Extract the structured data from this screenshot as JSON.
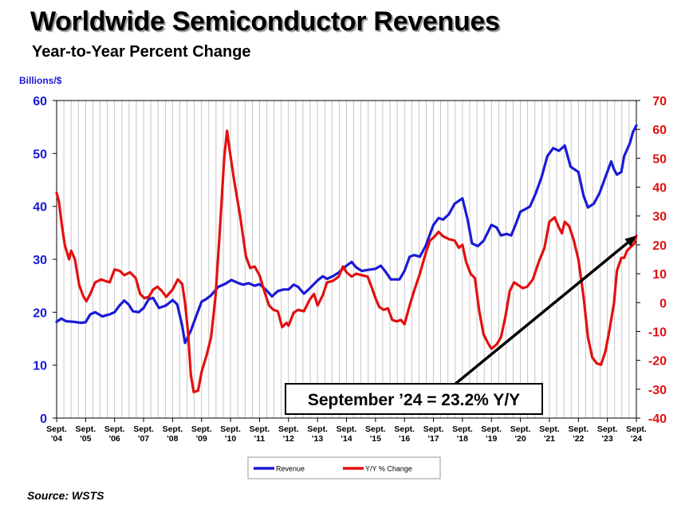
{
  "title": "Worldwide Semiconductor Revenues",
  "subtitle": "Year-to-Year Percent Change",
  "source": "Source: WSTS",
  "colors": {
    "revenue": "#1a1ad6",
    "yoy": "#e31010",
    "grid": "#b8b8b8",
    "left_axis": "#1a1ad6",
    "right_axis": "#e31010"
  },
  "chart_data": {
    "type": "line",
    "ylabel_left": "Billions/$",
    "ylim_left": [
      0,
      60
    ],
    "yticks_left": [
      "0",
      "10",
      "20",
      "30",
      "40",
      "50",
      "60"
    ],
    "ylim_right": [
      -40,
      70
    ],
    "yticks_right": [
      "-40",
      "-30",
      "-20",
      "-10",
      "0",
      "10",
      "20",
      "30",
      "40",
      "50",
      "60",
      "70"
    ],
    "x_range": [
      2004.67,
      2024.67
    ],
    "x_ticks": [
      {
        "top": "Sept.",
        "bottom": "'04"
      },
      {
        "top": "Sept.",
        "bottom": "'05"
      },
      {
        "top": "Sept.",
        "bottom": "'06"
      },
      {
        "top": "Sept.",
        "bottom": "'07"
      },
      {
        "top": "Sept.",
        "bottom": "'08"
      },
      {
        "top": "Sept.",
        "bottom": "'09"
      },
      {
        "top": "Sept.",
        "bottom": "'10"
      },
      {
        "top": "Sept.",
        "bottom": "'11"
      },
      {
        "top": "Sept.",
        "bottom": "'12"
      },
      {
        "top": "Sept.",
        "bottom": "'13"
      },
      {
        "top": "Sept.",
        "bottom": "'14"
      },
      {
        "top": "Sept.",
        "bottom": "'15"
      },
      {
        "top": "Sept.",
        "bottom": "'16"
      },
      {
        "top": "Sept.",
        "bottom": "'17"
      },
      {
        "top": "Sept.",
        "bottom": "'18"
      },
      {
        "top": "Sept.",
        "bottom": "'19"
      },
      {
        "top": "Sept.",
        "bottom": "'20"
      },
      {
        "top": "Sept.",
        "bottom": "'21"
      },
      {
        "top": "Sept.",
        "bottom": "'22"
      },
      {
        "top": "Sept.",
        "bottom": "'23"
      },
      {
        "top": "Sept.",
        "bottom": "'24"
      }
    ],
    "legend": [
      {
        "name": "Revenue",
        "color": "#1a1ad6"
      },
      {
        "name": "Y/Y % Change",
        "color": "#e31010"
      }
    ],
    "annotation": {
      "text": "September ’24 = 23.2% Y/Y",
      "arrow_from": [
        2018.2,
        -30
      ],
      "arrow_to": [
        2024.67,
        23.2
      ]
    },
    "series": [
      {
        "name": "Revenue",
        "axis": "left",
        "points": [
          [
            2004.67,
            18.2
          ],
          [
            2004.83,
            18.8
          ],
          [
            2005.0,
            18.3
          ],
          [
            2005.25,
            18.2
          ],
          [
            2005.5,
            18.0
          ],
          [
            2005.67,
            18.1
          ],
          [
            2005.83,
            19.6
          ],
          [
            2006.0,
            20.0
          ],
          [
            2006.25,
            19.2
          ],
          [
            2006.5,
            19.6
          ],
          [
            2006.67,
            20.0
          ],
          [
            2006.83,
            21.2
          ],
          [
            2007.0,
            22.2
          ],
          [
            2007.15,
            21.5
          ],
          [
            2007.3,
            20.2
          ],
          [
            2007.5,
            20.0
          ],
          [
            2007.67,
            20.8
          ],
          [
            2007.85,
            22.5
          ],
          [
            2008.0,
            22.7
          ],
          [
            2008.2,
            20.8
          ],
          [
            2008.45,
            21.3
          ],
          [
            2008.67,
            22.3
          ],
          [
            2008.83,
            21.5
          ],
          [
            2009.0,
            17.5
          ],
          [
            2009.1,
            14.2
          ],
          [
            2009.3,
            16.5
          ],
          [
            2009.5,
            19.5
          ],
          [
            2009.67,
            22.0
          ],
          [
            2009.83,
            22.5
          ],
          [
            2010.0,
            23.2
          ],
          [
            2010.25,
            24.8
          ],
          [
            2010.5,
            25.4
          ],
          [
            2010.7,
            26.1
          ],
          [
            2010.9,
            25.6
          ],
          [
            2011.1,
            25.2
          ],
          [
            2011.3,
            25.5
          ],
          [
            2011.5,
            25.0
          ],
          [
            2011.67,
            25.3
          ],
          [
            2011.9,
            24.2
          ],
          [
            2012.1,
            23.0
          ],
          [
            2012.3,
            24.0
          ],
          [
            2012.5,
            24.3
          ],
          [
            2012.67,
            24.3
          ],
          [
            2012.85,
            25.2
          ],
          [
            2013.0,
            24.8
          ],
          [
            2013.2,
            23.5
          ],
          [
            2013.4,
            24.5
          ],
          [
            2013.67,
            26.0
          ],
          [
            2013.85,
            26.8
          ],
          [
            2014.0,
            26.3
          ],
          [
            2014.2,
            26.8
          ],
          [
            2014.4,
            27.5
          ],
          [
            2014.67,
            28.8
          ],
          [
            2014.85,
            29.5
          ],
          [
            2015.0,
            28.5
          ],
          [
            2015.2,
            27.8
          ],
          [
            2015.4,
            28.0
          ],
          [
            2015.67,
            28.2
          ],
          [
            2015.85,
            28.8
          ],
          [
            2016.0,
            27.8
          ],
          [
            2016.2,
            26.2
          ],
          [
            2016.5,
            26.2
          ],
          [
            2016.67,
            27.8
          ],
          [
            2016.85,
            30.5
          ],
          [
            2017.0,
            30.8
          ],
          [
            2017.2,
            30.5
          ],
          [
            2017.4,
            32.5
          ],
          [
            2017.67,
            36.5
          ],
          [
            2017.85,
            37.8
          ],
          [
            2018.0,
            37.5
          ],
          [
            2018.2,
            38.5
          ],
          [
            2018.4,
            40.5
          ],
          [
            2018.67,
            41.5
          ],
          [
            2018.85,
            37.5
          ],
          [
            2019.0,
            33.0
          ],
          [
            2019.2,
            32.5
          ],
          [
            2019.4,
            33.5
          ],
          [
            2019.67,
            36.5
          ],
          [
            2019.85,
            36.0
          ],
          [
            2020.0,
            34.5
          ],
          [
            2020.2,
            34.8
          ],
          [
            2020.35,
            34.5
          ],
          [
            2020.5,
            36.5
          ],
          [
            2020.67,
            39.0
          ],
          [
            2020.85,
            39.5
          ],
          [
            2021.0,
            40.0
          ],
          [
            2021.2,
            42.5
          ],
          [
            2021.4,
            45.5
          ],
          [
            2021.6,
            49.5
          ],
          [
            2021.8,
            51.0
          ],
          [
            2022.0,
            50.5
          ],
          [
            2022.2,
            51.5
          ],
          [
            2022.4,
            47.5
          ],
          [
            2022.67,
            46.5
          ],
          [
            2022.85,
            42.0
          ],
          [
            2023.0,
            39.8
          ],
          [
            2023.2,
            40.5
          ],
          [
            2023.4,
            42.5
          ],
          [
            2023.6,
            45.5
          ],
          [
            2023.8,
            48.5
          ],
          [
            2023.9,
            47.0
          ],
          [
            2024.0,
            46.0
          ],
          [
            2024.15,
            46.5
          ],
          [
            2024.25,
            49.5
          ],
          [
            2024.45,
            52.0
          ],
          [
            2024.55,
            54.0
          ],
          [
            2024.67,
            55.3
          ]
        ]
      },
      {
        "name": "Y/Y % Change",
        "axis": "right",
        "points": [
          [
            2004.67,
            38.0
          ],
          [
            2004.75,
            35.0
          ],
          [
            2004.85,
            27.0
          ],
          [
            2004.95,
            20.0
          ],
          [
            2005.1,
            15.0
          ],
          [
            2005.17,
            18.0
          ],
          [
            2005.3,
            15.0
          ],
          [
            2005.45,
            6.0
          ],
          [
            2005.6,
            2.0
          ],
          [
            2005.7,
            0.5
          ],
          [
            2005.83,
            3.0
          ],
          [
            2006.0,
            7.0
          ],
          [
            2006.2,
            8.0
          ],
          [
            2006.35,
            7.5
          ],
          [
            2006.5,
            7.0
          ],
          [
            2006.67,
            11.5
          ],
          [
            2006.85,
            11.0
          ],
          [
            2007.0,
            9.5
          ],
          [
            2007.2,
            10.5
          ],
          [
            2007.4,
            8.5
          ],
          [
            2007.55,
            3.0
          ],
          [
            2007.7,
            1.5
          ],
          [
            2007.85,
            2.0
          ],
          [
            2008.0,
            4.5
          ],
          [
            2008.15,
            5.5
          ],
          [
            2008.3,
            4.0
          ],
          [
            2008.45,
            2.0
          ],
          [
            2008.67,
            4.5
          ],
          [
            2008.85,
            8.0
          ],
          [
            2009.0,
            6.5
          ],
          [
            2009.1,
            0.0
          ],
          [
            2009.2,
            -10.0
          ],
          [
            2009.3,
            -25.0
          ],
          [
            2009.4,
            -31.0
          ],
          [
            2009.55,
            -30.5
          ],
          [
            2009.67,
            -24.0
          ],
          [
            2009.85,
            -18.0
          ],
          [
            2010.0,
            -12.0
          ],
          [
            2010.15,
            2.0
          ],
          [
            2010.3,
            25.0
          ],
          [
            2010.45,
            50.0
          ],
          [
            2010.55,
            59.5
          ],
          [
            2010.65,
            52.0
          ],
          [
            2010.8,
            42.0
          ],
          [
            2011.0,
            30.0
          ],
          [
            2011.2,
            16.0
          ],
          [
            2011.35,
            12.0
          ],
          [
            2011.5,
            12.5
          ],
          [
            2011.67,
            9.5
          ],
          [
            2011.85,
            3.5
          ],
          [
            2012.0,
            -1.0
          ],
          [
            2012.15,
            -2.5
          ],
          [
            2012.3,
            -3.0
          ],
          [
            2012.45,
            -8.5
          ],
          [
            2012.6,
            -7.0
          ],
          [
            2012.67,
            -8.0
          ],
          [
            2012.85,
            -3.5
          ],
          [
            2013.0,
            -2.5
          ],
          [
            2013.2,
            -3.0
          ],
          [
            2013.4,
            1.0
          ],
          [
            2013.55,
            3.0
          ],
          [
            2013.67,
            -1.0
          ],
          [
            2013.85,
            2.5
          ],
          [
            2014.0,
            7.0
          ],
          [
            2014.2,
            7.5
          ],
          [
            2014.4,
            9.0
          ],
          [
            2014.55,
            12.5
          ],
          [
            2014.67,
            10.5
          ],
          [
            2014.85,
            9.0
          ],
          [
            2015.0,
            10.0
          ],
          [
            2015.2,
            9.5
          ],
          [
            2015.4,
            9.0
          ],
          [
            2015.55,
            5.0
          ],
          [
            2015.67,
            1.5
          ],
          [
            2015.8,
            -1.5
          ],
          [
            2015.95,
            -2.5
          ],
          [
            2016.1,
            -2.0
          ],
          [
            2016.25,
            -6.0
          ],
          [
            2016.4,
            -6.5
          ],
          [
            2016.55,
            -6.0
          ],
          [
            2016.67,
            -7.5
          ],
          [
            2016.85,
            -1.0
          ],
          [
            2017.0,
            4.0
          ],
          [
            2017.2,
            10.0
          ],
          [
            2017.4,
            17.0
          ],
          [
            2017.55,
            21.5
          ],
          [
            2017.67,
            22.5
          ],
          [
            2017.85,
            24.5
          ],
          [
            2018.0,
            23.0
          ],
          [
            2018.2,
            22.0
          ],
          [
            2018.4,
            21.5
          ],
          [
            2018.55,
            19.0
          ],
          [
            2018.67,
            20.0
          ],
          [
            2018.8,
            14.0
          ],
          [
            2018.95,
            10.0
          ],
          [
            2019.1,
            8.5
          ],
          [
            2019.25,
            -3.0
          ],
          [
            2019.4,
            -11.0
          ],
          [
            2019.55,
            -14.0
          ],
          [
            2019.67,
            -16.0
          ],
          [
            2019.85,
            -14.5
          ],
          [
            2020.0,
            -12.0
          ],
          [
            2020.15,
            -5.0
          ],
          [
            2020.3,
            4.0
          ],
          [
            2020.45,
            7.0
          ],
          [
            2020.6,
            6.0
          ],
          [
            2020.75,
            5.0
          ],
          [
            2020.9,
            5.5
          ],
          [
            2021.1,
            8.0
          ],
          [
            2021.3,
            14.0
          ],
          [
            2021.5,
            19.0
          ],
          [
            2021.67,
            28.0
          ],
          [
            2021.85,
            29.5
          ],
          [
            2022.0,
            26.0
          ],
          [
            2022.1,
            24.0
          ],
          [
            2022.2,
            28.0
          ],
          [
            2022.35,
            26.5
          ],
          [
            2022.5,
            22.0
          ],
          [
            2022.67,
            15.0
          ],
          [
            2022.85,
            2.0
          ],
          [
            2023.0,
            -12.0
          ],
          [
            2023.15,
            -19.0
          ],
          [
            2023.3,
            -21.0
          ],
          [
            2023.45,
            -21.5
          ],
          [
            2023.6,
            -17.0
          ],
          [
            2023.75,
            -9.0
          ],
          [
            2023.9,
            0.0
          ],
          [
            2024.0,
            11.0
          ],
          [
            2024.15,
            15.5
          ],
          [
            2024.25,
            15.5
          ],
          [
            2024.35,
            18.0
          ],
          [
            2024.5,
            19.5
          ],
          [
            2024.6,
            20.5
          ],
          [
            2024.67,
            23.2
          ]
        ]
      }
    ]
  }
}
